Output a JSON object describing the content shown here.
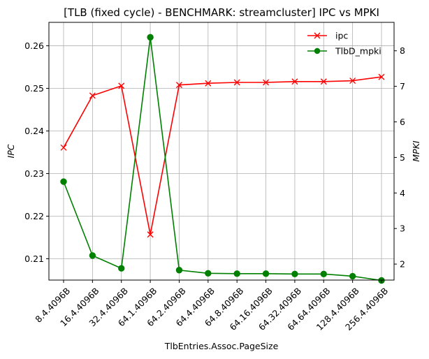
{
  "chart_data": {
    "type": "line",
    "title": "[TLB (fixed cycle) - BENCHMARK: streamcluster]  IPC vs MPKI",
    "xlabel": "TlbEntries.Assoc.PageSize",
    "ylabel_left": "IPC",
    "ylabel_right": "MPKI",
    "categories": [
      "8.4.4096B",
      "16.4.4096B",
      "32.4.4096B",
      "64.1.4096B",
      "64.2.4096B",
      "64.4.4096B",
      "64.8.4096B",
      "64.16.4096B",
      "64.32.4096B",
      "64.64.4096B",
      "128.4.4096B",
      "256.4.4096B"
    ],
    "ylim_left": [
      0.205,
      0.2655
    ],
    "yticks_left": [
      "0.21",
      "0.22",
      "0.23",
      "0.24",
      "0.25",
      "0.26"
    ],
    "ylim_right": [
      1.55,
      8.8
    ],
    "yticks_right": [
      "2",
      "3",
      "4",
      "5",
      "6",
      "7",
      "8"
    ],
    "grid": true,
    "legend_position": "upper right",
    "series": [
      {
        "name": "ipc",
        "axis": "left",
        "color": "#ff0000",
        "marker": "x",
        "values": [
          0.2361,
          0.2483,
          0.2506,
          0.2157,
          0.2508,
          0.2512,
          0.2514,
          0.2514,
          0.2516,
          0.2516,
          0.2518,
          0.2527
        ]
      },
      {
        "name": "TlbD_mpki",
        "axis": "right",
        "color": "#008000",
        "marker": "o",
        "values": [
          4.32,
          2.24,
          1.88,
          8.38,
          1.83,
          1.74,
          1.73,
          1.73,
          1.72,
          1.72,
          1.66,
          1.54
        ]
      }
    ]
  }
}
